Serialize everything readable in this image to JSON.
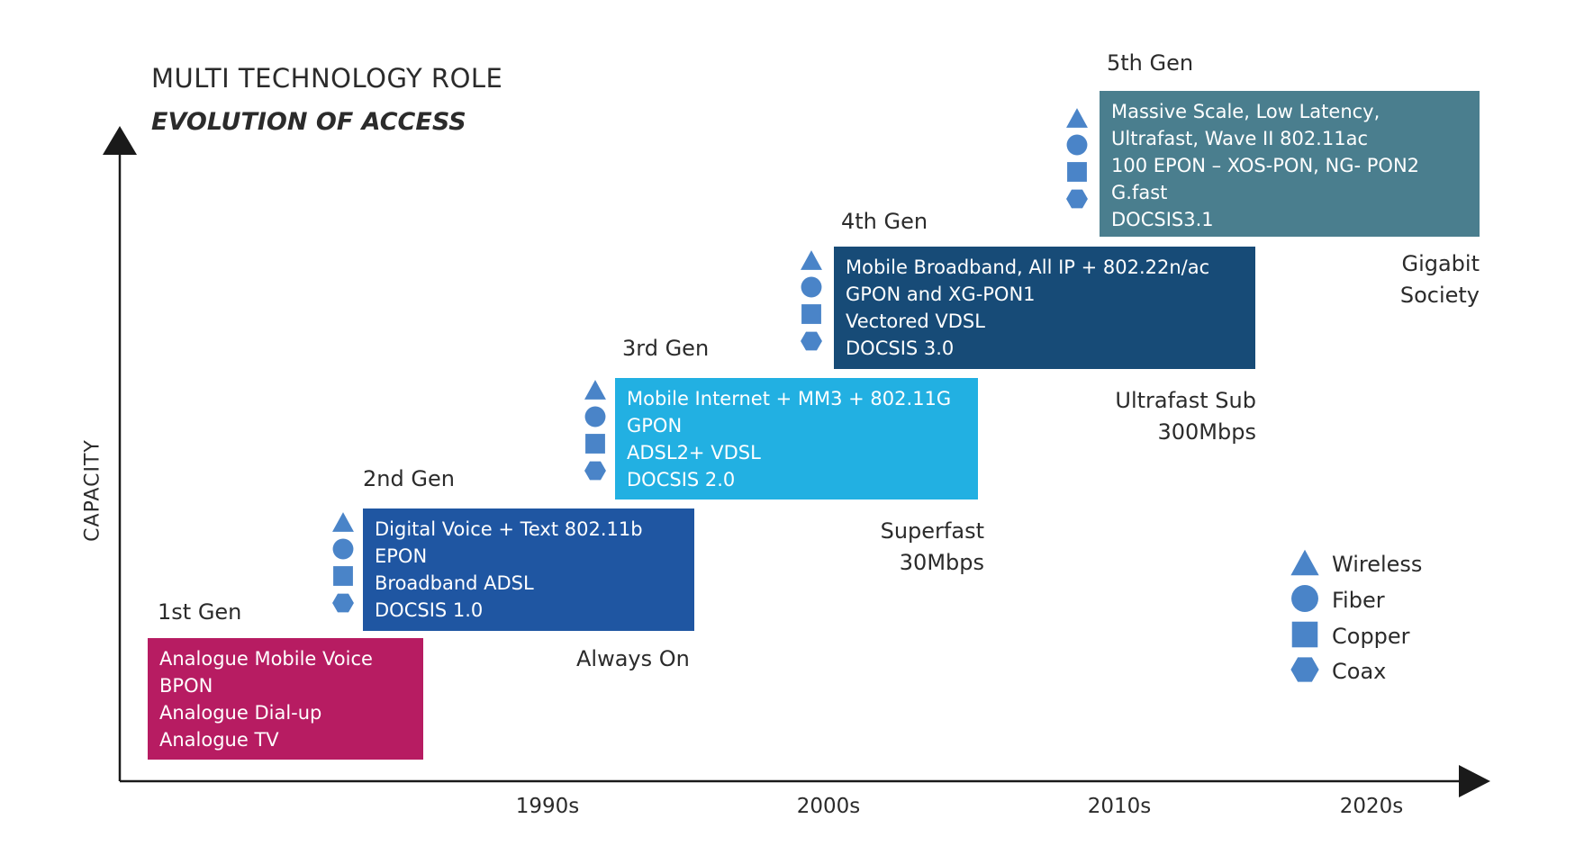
{
  "header": {
    "title": "MULTI TECHNOLOGY ROLE",
    "subtitle": "EVOLUTION OF ACCESS"
  },
  "axes": {
    "y_label": "CAPACITY",
    "decades": [
      "1990s",
      "2000s",
      "2010s",
      "2020s"
    ]
  },
  "generations": [
    {
      "label": "1st Gen",
      "color": "#b71c62",
      "lines": [
        "Analogue Mobile Voice",
        "BPON",
        "Analogue Dial-up",
        "Analogue TV"
      ],
      "icons": []
    },
    {
      "label": "2nd Gen",
      "color": "#1f56a2",
      "lines": [
        "Digital Voice + Text  802.11b",
        "EPON",
        "Broadband ADSL",
        "DOCSIS 1.0"
      ],
      "icons": [
        "triangle-icon",
        "circle-icon",
        "square-icon",
        "hexagon-icon"
      ]
    },
    {
      "label": "3rd Gen",
      "color": "#22b0e2",
      "lines": [
        "Mobile Internet + MM3 + 802.11G",
        "GPON",
        "ADSL2+ VDSL",
        "DOCSIS 2.0"
      ],
      "icons": [
        "triangle-icon",
        "circle-icon",
        "square-icon",
        "hexagon-icon"
      ]
    },
    {
      "label": "4th Gen",
      "color": "#174b77",
      "lines": [
        "Mobile Broadband, All IP + 802.22n/ac",
        "GPON and XG-PON1",
        "Vectored VDSL",
        "DOCSIS 3.0"
      ],
      "icons": [
        "triangle-icon",
        "circle-icon",
        "square-icon",
        "hexagon-icon"
      ]
    },
    {
      "label": "5th Gen",
      "color": "#4a7e8e",
      "lines": [
        "Massive Scale, Low Latency,",
        "Ultrafast, Wave II 802.11ac",
        "100 EPON – XOS-PON, NG- PON2",
        "G.fast",
        "DOCSIS3.1"
      ],
      "icons": [
        "triangle-icon",
        "circle-icon",
        "square-icon",
        "hexagon-icon"
      ]
    }
  ],
  "milestones": [
    {
      "lines": [
        "Always On"
      ]
    },
    {
      "lines": [
        "Superfast",
        "30Mbps"
      ]
    },
    {
      "lines": [
        "Ultrafast Sub",
        "300Mbps"
      ]
    },
    {
      "lines": [
        "Gigabit",
        "Society"
      ]
    }
  ],
  "legend": {
    "icon_color": "#4a84c8",
    "items": [
      {
        "icon": "triangle-icon",
        "label": "Wireless"
      },
      {
        "icon": "circle-icon",
        "label": "Fiber"
      },
      {
        "icon": "square-icon",
        "label": "Copper"
      },
      {
        "icon": "hexagon-icon",
        "label": "Coax"
      }
    ]
  },
  "colors": {
    "axis": "#1a1a1a"
  }
}
